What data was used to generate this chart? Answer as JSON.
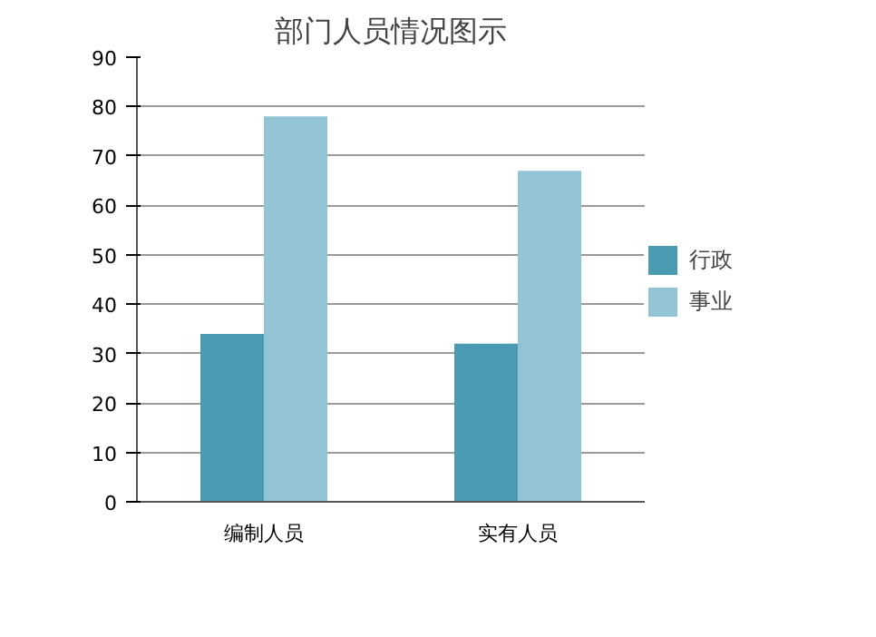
{
  "chart_data": {
    "type": "bar",
    "title": "部门人员情况图示",
    "categories": [
      "编制人员",
      "实有人员"
    ],
    "series": [
      {
        "name": "行政",
        "color": "#4a9bb2",
        "values": [
          34,
          32
        ]
      },
      {
        "name": "事业",
        "color": "#93c4d6",
        "values": [
          78,
          67
        ]
      }
    ],
    "ylim": [
      0,
      90
    ],
    "yticks": [
      0,
      10,
      20,
      30,
      40,
      50,
      60,
      70,
      80,
      90
    ],
    "grid": "y",
    "legend": "right"
  }
}
